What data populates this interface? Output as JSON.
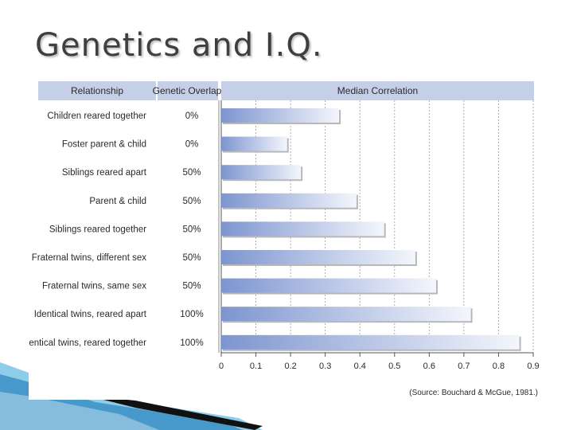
{
  "slide": {
    "title": "Genetics and I.Q."
  },
  "chart_data": {
    "type": "bar",
    "orientation": "horizontal",
    "headers": {
      "relationship": "Relationship",
      "overlap": "Genetic Overlap",
      "correlation": "Median Correlation"
    },
    "categories": [
      "Children reared together",
      "Foster parent & child",
      "Siblings reared apart",
      "Parent & child",
      "Siblings reared together",
      "Fraternal twins, different sex",
      "Fraternal twins, same sex",
      "Identical twins, reared apart",
      "Identical twins, reared together"
    ],
    "genetic_overlap": [
      "0%",
      "0%",
      "50%",
      "50%",
      "50%",
      "50%",
      "50%",
      "100%",
      "100%"
    ],
    "values": [
      0.34,
      0.19,
      0.23,
      0.39,
      0.47,
      0.56,
      0.62,
      0.72,
      0.86
    ],
    "xlim": [
      0,
      0.9
    ],
    "xticks": [
      "0",
      "0.1",
      "0.2",
      "0.3",
      "0.4",
      "0.5",
      "0.6",
      "0.7",
      "0.8",
      "0.9"
    ],
    "grid": true,
    "source": "(Source: Bouchard & McGue, 1981.)",
    "colors": {
      "header_bg": "#c5cfe8",
      "bar_start": "#7d95cf",
      "bar_end": "#f4f6fc",
      "grid": "#9a9a9a",
      "text": "#2a2a2a"
    }
  }
}
